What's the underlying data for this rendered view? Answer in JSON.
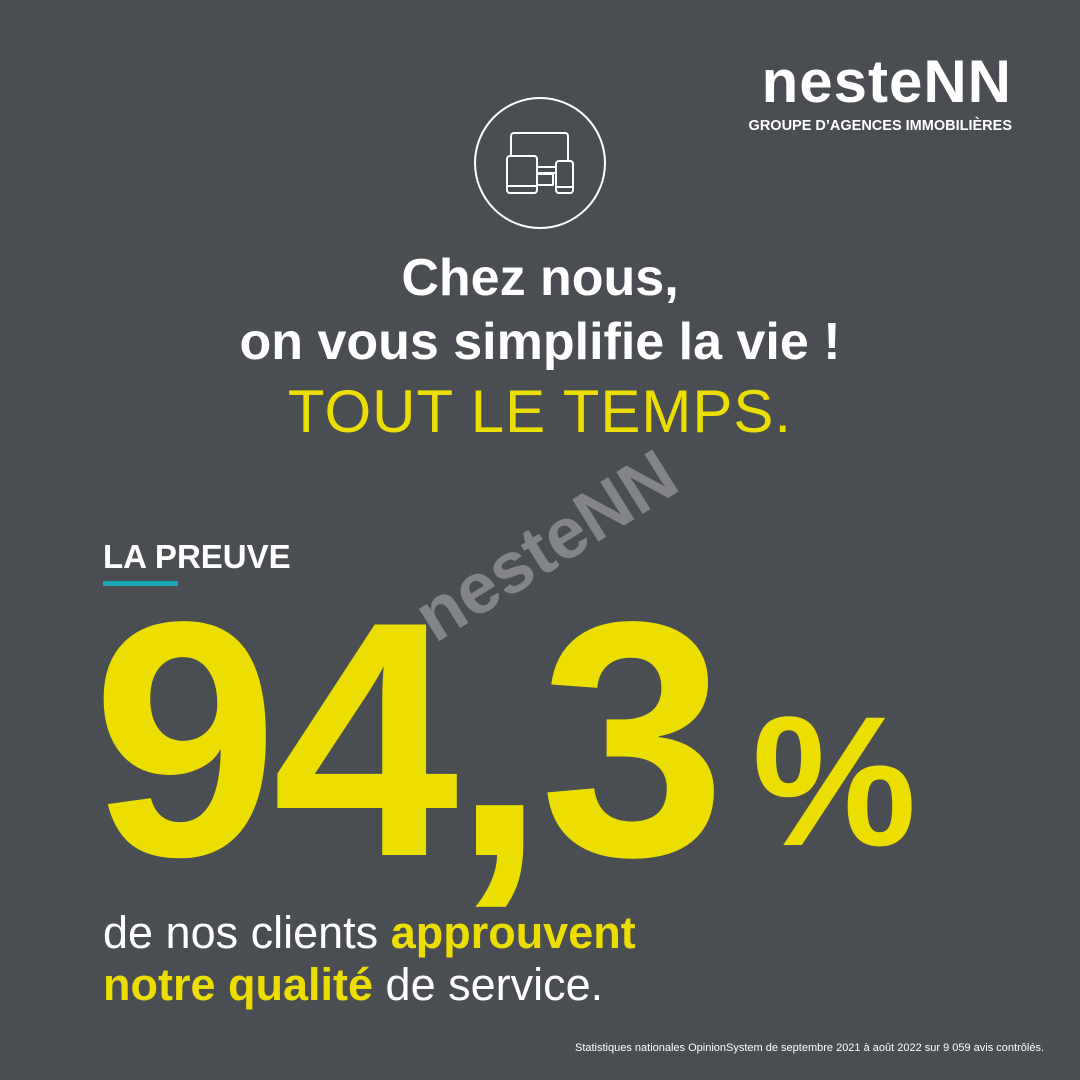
{
  "logo": {
    "name": "nesteNN",
    "tagline": "GROUPE D’AGENCES IMMOBILIÈRES"
  },
  "headline": {
    "line1": "Chez nous,",
    "line2": "on vous simplifie la vie !",
    "line3": "TOUT LE TEMPS."
  },
  "watermark": "nesteNN",
  "proof": {
    "label": "LA PREUVE",
    "stat": "94,3",
    "unit": "%"
  },
  "body": {
    "part1": "de nos clients",
    "highlight1": "approuvent",
    "highlight2": "notre qualité",
    "part2": "de service."
  },
  "footnote": "Statistiques nationales OpinionSystem de septembre 2021 à août 2022 sur 9 059 avis contrôlés."
}
